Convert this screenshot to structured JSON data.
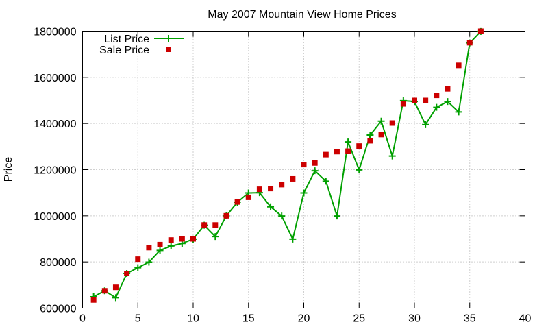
{
  "chart_data": {
    "type": "line",
    "title": "May 2007 Mountain View Home Prices",
    "xlabel": "",
    "ylabel": "Price",
    "xlim": [
      0,
      40
    ],
    "ylim": [
      600000,
      1800000
    ],
    "xticks": [
      0,
      5,
      10,
      15,
      20,
      25,
      30,
      35,
      40
    ],
    "yticks": [
      600000,
      800000,
      1000000,
      1200000,
      1400000,
      1600000,
      1800000
    ],
    "grid": true,
    "legend_position": "top-left",
    "x": [
      1,
      2,
      3,
      4,
      5,
      6,
      7,
      8,
      9,
      10,
      11,
      12,
      13,
      14,
      15,
      16,
      17,
      18,
      19,
      20,
      21,
      22,
      23,
      24,
      25,
      26,
      27,
      28,
      29,
      30,
      31,
      32,
      33,
      34,
      35,
      36
    ],
    "series": [
      {
        "name": "List Price",
        "style": "lines-with-plus-markers",
        "color": "#00a000",
        "values": [
          649000,
          675000,
          645000,
          750000,
          775000,
          799000,
          850000,
          869000,
          880000,
          899000,
          959000,
          910000,
          1000000,
          1059000,
          1099000,
          1100000,
          1039000,
          999000,
          899000,
          1099000,
          1195000,
          1150000,
          999000,
          1320000,
          1199000,
          1350000,
          1410000,
          1259000,
          1499000,
          1495000,
          1395000,
          1470000,
          1495000,
          1450000,
          1749000,
          1799000
        ]
      },
      {
        "name": "Sale Price",
        "style": "square-points",
        "color": "#cc0000",
        "values": [
          635000,
          675000,
          690000,
          750000,
          812000,
          862000,
          875000,
          895000,
          900000,
          900000,
          960000,
          960000,
          1000000,
          1060000,
          1080000,
          1115000,
          1118000,
          1135000,
          1160000,
          1222000,
          1229000,
          1265000,
          1278000,
          1280000,
          1302000,
          1325000,
          1352000,
          1402000,
          1485000,
          1500000,
          1500000,
          1522000,
          1550000,
          1652000,
          1750000,
          1800000
        ]
      }
    ]
  }
}
